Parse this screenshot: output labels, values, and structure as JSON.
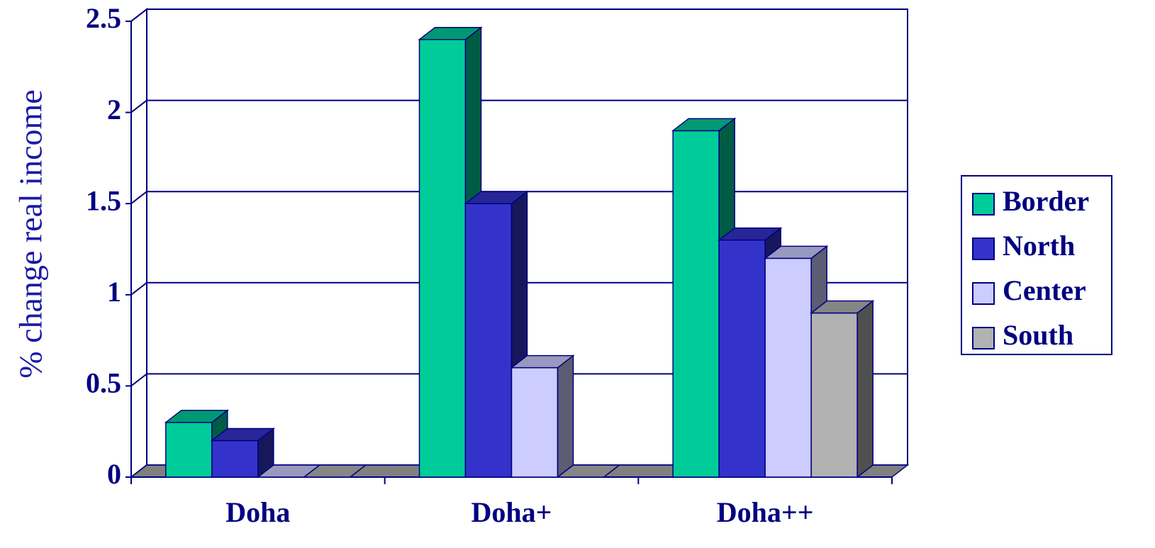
{
  "chart_data": {
    "type": "bar3d",
    "y_label": "% change real income",
    "categories": [
      "Doha",
      "Doha+",
      "Doha++"
    ],
    "series": [
      {
        "name": "Border",
        "color": "#00cc99",
        "values": [
          0.3,
          2.4,
          1.9
        ]
      },
      {
        "name": "North",
        "color": "#3333cc",
        "values": [
          0.2,
          1.5,
          1.3
        ]
      },
      {
        "name": "Center",
        "color": "#ccccff",
        "values": [
          0,
          0.6,
          1.2
        ]
      },
      {
        "name": "South",
        "color": "#b2b2b2",
        "values": [
          0,
          0,
          0.9
        ]
      }
    ],
    "ylim": [
      0,
      2.5
    ],
    "yticks": [
      0,
      0.5,
      1,
      1.5,
      2,
      2.5
    ],
    "grid": true,
    "legend": "right"
  }
}
